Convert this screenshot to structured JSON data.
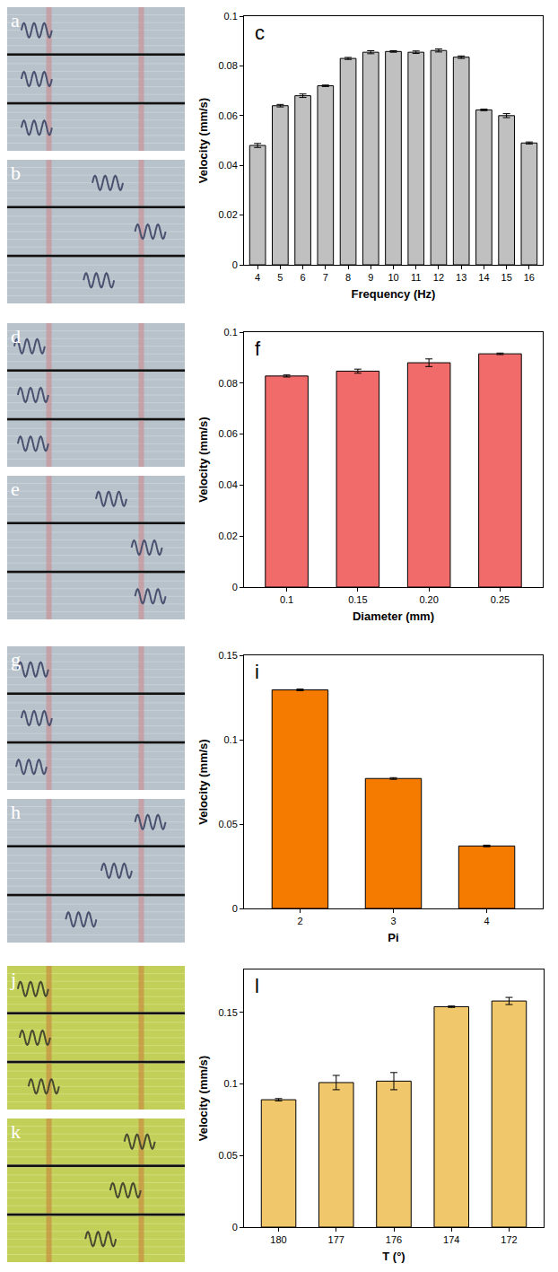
{
  "image_panels": [
    {
      "label": "a",
      "strips": 3
    },
    {
      "label": "b",
      "strips": 3
    },
    {
      "label": "d",
      "strips": 3
    },
    {
      "label": "e",
      "strips": 3
    },
    {
      "label": "g",
      "strips": 3
    },
    {
      "label": "h",
      "strips": 3
    },
    {
      "label": "j",
      "strips": 3
    },
    {
      "label": "k",
      "strips": 3
    }
  ],
  "chart_data": [
    {
      "type": "bar",
      "title": "c",
      "x_label": "Frequency (Hz)",
      "y_label": "Velocity (mm/s)",
      "categories": [
        "4",
        "5",
        "6",
        "7",
        "8",
        "9",
        "10",
        "11",
        "12",
        "13",
        "14",
        "15",
        "16"
      ],
      "values": [
        0.048,
        0.064,
        0.068,
        0.072,
        0.083,
        0.0855,
        0.0858,
        0.0855,
        0.0862,
        0.0835,
        0.0623,
        0.06,
        0.049
      ],
      "errors": [
        0.0008,
        0.0005,
        0.0007,
        0.0003,
        0.0004,
        0.0006,
        0.0003,
        0.0005,
        0.0006,
        0.0005,
        0.0003,
        0.0008,
        0.0004
      ],
      "color": "#c0c0c0",
      "ylim": [
        0,
        0.1
      ],
      "yticks": [
        0,
        0.02,
        0.04,
        0.06,
        0.08,
        0.1
      ],
      "grid": false
    },
    {
      "type": "bar",
      "title": "f",
      "x_label": "Diameter (mm)",
      "y_label": "Velocity (mm/s)",
      "categories": [
        "0.1",
        "0.15",
        "0.20",
        "0.25"
      ],
      "values": [
        0.0828,
        0.0847,
        0.088,
        0.0915
      ],
      "errors": [
        0.0004,
        0.0008,
        0.0015,
        0.0003
      ],
      "color": "#f26b6b",
      "ylim": [
        0,
        0.1
      ],
      "yticks": [
        0,
        0.02,
        0.04,
        0.06,
        0.08,
        0.1
      ],
      "grid": false
    },
    {
      "type": "bar",
      "title": "i",
      "x_label": "Pi",
      "y_label": "Velocity (mm/s)",
      "categories": [
        "2",
        "3",
        "4"
      ],
      "values": [
        0.1295,
        0.077,
        0.037
      ],
      "errors": [
        0.0005,
        0.0005,
        0.0005
      ],
      "color": "#f47b00",
      "ylim": [
        0,
        0.15
      ],
      "yticks": [
        0,
        0.05,
        0.1,
        0.15
      ],
      "grid": false
    },
    {
      "type": "bar",
      "title": "l",
      "x_label": "T (°)",
      "y_label": "Velocity (mm/s)",
      "categories": [
        "180",
        "177",
        "176",
        "174",
        "172"
      ],
      "values": [
        0.089,
        0.101,
        0.102,
        0.154,
        0.158
      ],
      "errors": [
        0.0008,
        0.005,
        0.006,
        0.0005,
        0.0025
      ],
      "color": "#f0c76b",
      "ylim": [
        0,
        0.18
      ],
      "yticks": [
        0,
        0.05,
        0.1,
        0.15
      ],
      "grid": false
    }
  ]
}
